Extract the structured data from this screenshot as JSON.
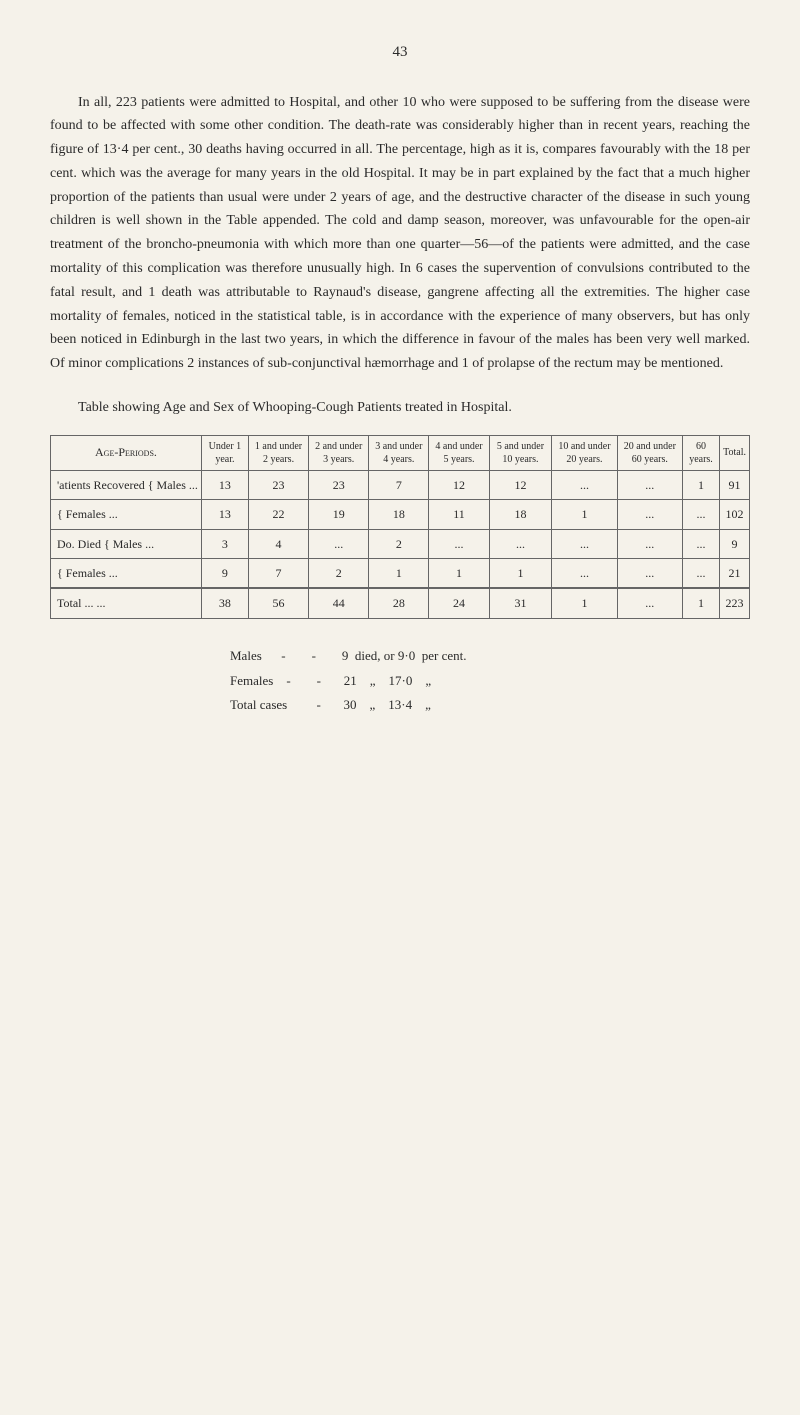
{
  "page_number": "43",
  "paragraph": "In all, 223 patients were admitted to Hospital, and other 10 who were supposed to be suffering from the disease were found to be affected with some other condition. The death-rate was considerably higher than in recent years, reaching the figure of 13·4 per cent., 30 deaths having occurred in all. The percentage, high as it is, compares favourably with the 18 per cent. which was the average for many years in the old Hospital. It may be in part explained by the fact that a much higher proportion of the patients than usual were under 2 years of age, and the destructive character of the disease in such young children is well shown in the Table appended. The cold and damp season, moreover, was unfavourable for the open-air treatment of the broncho-pneumonia with which more than one quarter—56—of the patients were admitted, and the case mortality of this complication was therefore unusually high. In 6 cases the supervention of convulsions contributed to the fatal result, and 1 death was attributable to Raynaud's disease, gangrene affecting all the extremities. The higher case mortality of females, noticed in the statistical table, is in accordance with the experience of many observers, but has only been noticed in Edinburgh in the last two years, in which the difference in favour of the males has been very well marked. Of minor complications 2 instances of sub-conjunctival hæmorrhage and 1 of prolapse of the rectum may be mentioned.",
  "table_caption": "Table showing Age and Sex of Whooping-Cough Patients treated in Hospital.",
  "table": {
    "headers": [
      "Age-Periods.",
      "Under 1 year.",
      "1 and under 2 years.",
      "2 and under 3 years.",
      "3 and under 4 years.",
      "4 and under 5 years.",
      "5 and under 10 years.",
      "10 and under 20 years.",
      "20 and under 60 years.",
      "60 years.",
      "Total."
    ],
    "rows": [
      {
        "label": "'atients Recovered { Males   ...",
        "cells": [
          "13",
          "23",
          "23",
          "7",
          "12",
          "12",
          "...",
          "...",
          "1",
          "91"
        ]
      },
      {
        "label": "                    { Females ...",
        "cells": [
          "13",
          "22",
          "19",
          "18",
          "11",
          "18",
          "1",
          "...",
          "...",
          "102"
        ]
      },
      {
        "label": "Do.    Died  { Males   ...",
        "cells": [
          "3",
          "4",
          "...",
          "2",
          "...",
          "...",
          "...",
          "...",
          "...",
          "9"
        ]
      },
      {
        "label": "              { Females ...",
        "cells": [
          "9",
          "7",
          "2",
          "1",
          "1",
          "1",
          "...",
          "...",
          "...",
          "21"
        ]
      }
    ],
    "total_row": {
      "label": "Total   ...   ...",
      "cells": [
        "38",
        "56",
        "44",
        "28",
        "24",
        "31",
        "1",
        "...",
        "1",
        "223"
      ]
    }
  },
  "summary": [
    "Males      -        -        9  died, or 9·0  per cent.",
    "Females    -        -       21    „    17·0    „",
    "Total cases         -       30    „    13·4    „"
  ]
}
